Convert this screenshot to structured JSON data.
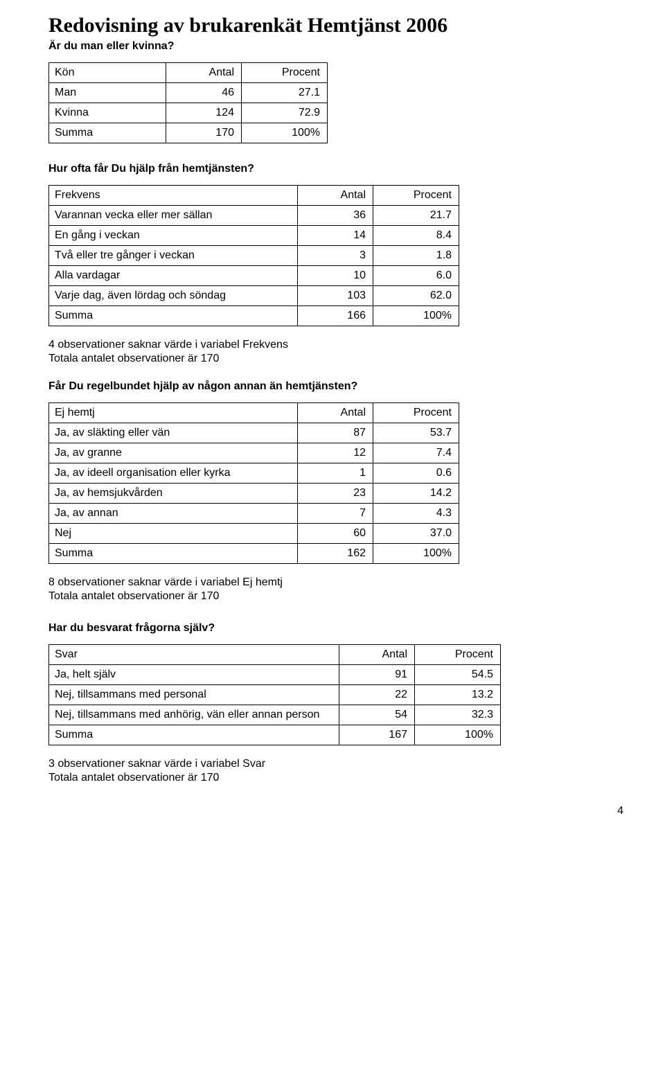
{
  "title": "Redovisning av brukarenkät Hemtjänst 2006",
  "q1": {
    "question": "Är du man eller kvinna?",
    "col1": "Kön",
    "col2": "Antal",
    "col3": "Procent",
    "rows": [
      {
        "label": "Man",
        "antal": "46",
        "procent": "27.1"
      },
      {
        "label": "Kvinna",
        "antal": "124",
        "procent": "72.9"
      },
      {
        "label": "Summa",
        "antal": "170",
        "procent": "100%"
      }
    ],
    "colw": {
      "c1": 150,
      "c2": 90,
      "c3": 105
    }
  },
  "q2": {
    "question": "Hur ofta får Du hjälp från hemtjänsten?",
    "col1": "Frekvens",
    "col2": "Antal",
    "col3": "Procent",
    "rows": [
      {
        "label": "Varannan vecka eller mer sällan",
        "antal": "36",
        "procent": "21.7"
      },
      {
        "label": "En gång i veckan",
        "antal": "14",
        "procent": "8.4"
      },
      {
        "label": "Två eller tre gånger i veckan",
        "antal": "3",
        "procent": "1.8"
      },
      {
        "label": "Alla vardagar",
        "antal": "10",
        "procent": "6.0"
      },
      {
        "label": "Varje dag, även lördag och söndag",
        "antal": "103",
        "procent": "62.0"
      },
      {
        "label": "Summa",
        "antal": "166",
        "procent": "100%"
      }
    ],
    "colw": {
      "c1": 340,
      "c2": 90,
      "c3": 105
    },
    "notes": [
      "4 observationer saknar värde i variabel Frekvens",
      "Totala antalet observationer är 170"
    ]
  },
  "q3": {
    "question": "Får Du regelbundet hjälp av någon annan än hemtjänsten?",
    "col1": "Ej hemtj",
    "col2": "Antal",
    "col3": "Procent",
    "rows": [
      {
        "label": "Ja, av släkting eller vän",
        "antal": "87",
        "procent": "53.7"
      },
      {
        "label": "Ja, av granne",
        "antal": "12",
        "procent": "7.4"
      },
      {
        "label": "Ja, av ideell organisation eller kyrka",
        "antal": "1",
        "procent": "0.6"
      },
      {
        "label": "Ja, av hemsjukvården",
        "antal": "23",
        "procent": "14.2"
      },
      {
        "label": "Ja, av annan",
        "antal": "7",
        "procent": "4.3"
      },
      {
        "label": "Nej",
        "antal": "60",
        "procent": "37.0"
      },
      {
        "label": "Summa",
        "antal": "162",
        "procent": "100%"
      }
    ],
    "colw": {
      "c1": 340,
      "c2": 90,
      "c3": 105
    },
    "notes": [
      "8 observationer saknar värde i variabel Ej hemtj",
      "Totala antalet observationer är 170"
    ]
  },
  "q4": {
    "question": "Har du besvarat frågorna själv?",
    "col1": "Svar",
    "col2": "Antal",
    "col3": "Procent",
    "rows": [
      {
        "label": "Ja, helt själv",
        "antal": "91",
        "procent": "54.5"
      },
      {
        "label": "Nej, tillsammans med personal",
        "antal": "22",
        "procent": "13.2"
      },
      {
        "label": "Nej, tillsammans med anhörig, vän eller annan person",
        "antal": "54",
        "procent": "32.3"
      },
      {
        "label": "Summa",
        "antal": "167",
        "procent": "100%"
      }
    ],
    "colw": {
      "c1": 400,
      "c2": 90,
      "c3": 105
    },
    "notes": [
      "3 observationer saknar värde i variabel Svar",
      "Totala antalet observationer är 170"
    ]
  },
  "page_number": "4"
}
